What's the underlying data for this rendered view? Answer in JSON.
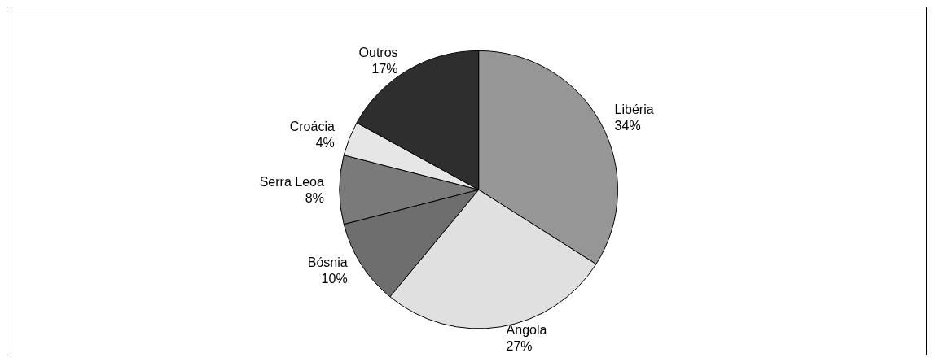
{
  "chart_data": {
    "type": "pie",
    "categories": [
      "Libéria",
      "Angola",
      "Bósnia",
      "Serra Leoa",
      "Croácia",
      "Outros"
    ],
    "values": [
      34,
      27,
      10,
      8,
      4,
      17
    ],
    "colors": [
      "#969696",
      "#e0e0e0",
      "#6e6e6e",
      "#7a7a7a",
      "#e6e6e6",
      "#2e2e2e"
    ],
    "value_labels": [
      "34%",
      "27%",
      "10%",
      "8%",
      "4%",
      "17%"
    ],
    "legend": false
  }
}
